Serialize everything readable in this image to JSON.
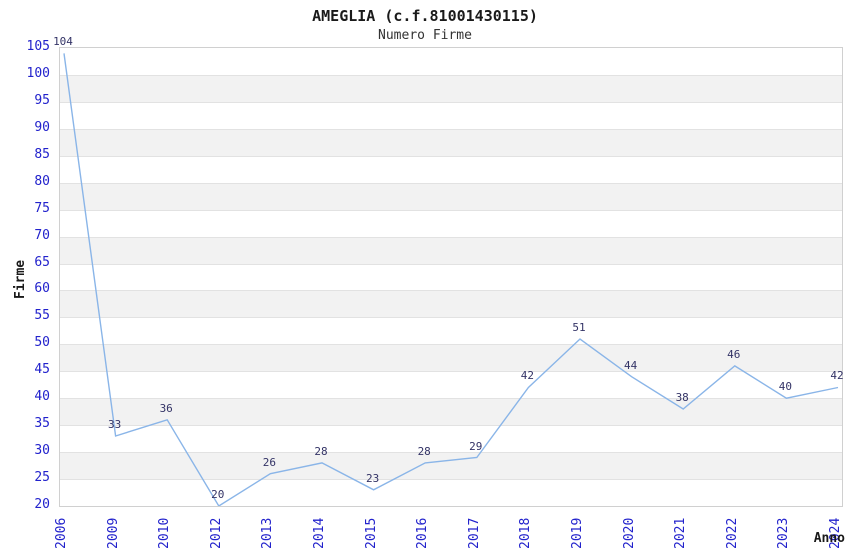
{
  "header": {
    "title": "AMEGLIA (c.f.81001430115)",
    "subtitle": "Numero Firme"
  },
  "axes": {
    "y_title": "Firme",
    "x_title": "Anno"
  },
  "chart_data": {
    "type": "line",
    "title": "AMEGLIA (c.f.81001430115)",
    "subtitle": "Numero Firme",
    "xlabel": "Anno",
    "ylabel": "Firme",
    "x": [
      "2006",
      "2009",
      "2010",
      "2012",
      "2013",
      "2014",
      "2015",
      "2016",
      "2017",
      "2018",
      "2019",
      "2020",
      "2021",
      "2022",
      "2023",
      "2024"
    ],
    "values": [
      104,
      33,
      36,
      20,
      26,
      28,
      23,
      28,
      29,
      42,
      51,
      44,
      38,
      46,
      40,
      42
    ],
    "ylim": [
      20,
      105
    ],
    "yticks": [
      20,
      25,
      30,
      35,
      40,
      45,
      50,
      55,
      60,
      65,
      70,
      75,
      80,
      85,
      90,
      95,
      100,
      105
    ],
    "grid": "horizontal-alternating-bands",
    "legend_position": "none",
    "point_labels_visible": true,
    "colors": {
      "line": "#8ab5e8",
      "point_label": "#333366",
      "tick_label": "#2222cc",
      "band_fill": "#f2f2f2",
      "gridline": "#e2e2e2",
      "plot_border": "#d0d0d0",
      "title_text": "#1a1a1a",
      "background": "#ffffff"
    }
  }
}
